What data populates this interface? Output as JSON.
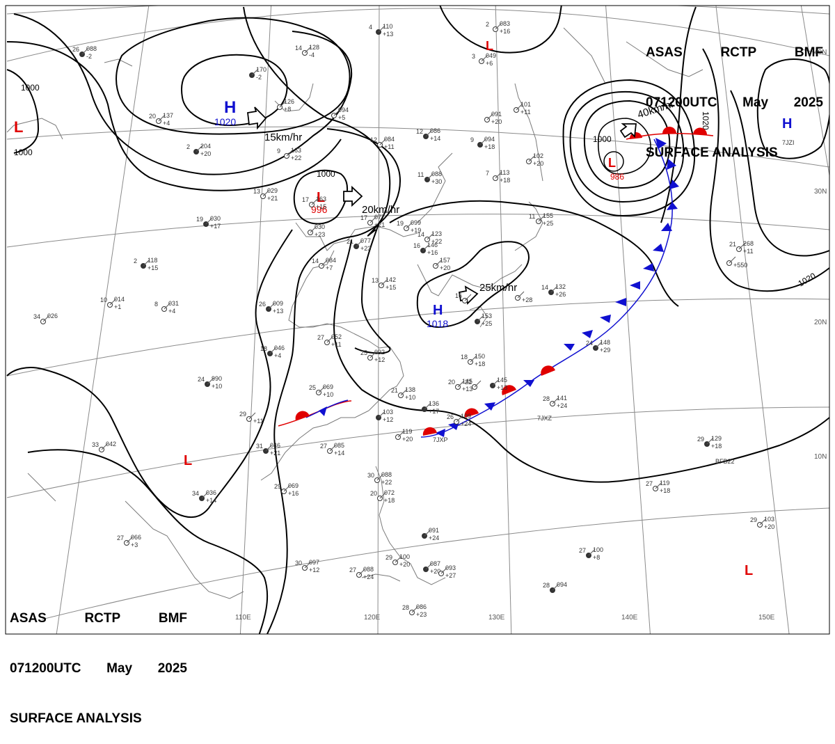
{
  "header": {
    "line1": [
      "ASAS",
      "RCTP",
      "BMF"
    ],
    "line2": [
      "071200UTC",
      "May",
      "2025"
    ],
    "line3": "SURFACE ANALYSIS"
  },
  "lat_labels": [
    "40N",
    "30N",
    "20N",
    "10N"
  ],
  "lon_labels": [
    "110E",
    "120E",
    "130E",
    "140E",
    "150E"
  ],
  "systems": [
    {
      "type": "H",
      "pressure": "1020"
    },
    {
      "type": "L",
      "pressure": "996"
    },
    {
      "type": "H",
      "pressure": "1018"
    },
    {
      "type": "L",
      "pressure": "986"
    },
    {
      "type": "L",
      "pressure": ""
    },
    {
      "type": "H",
      "pressure": ""
    },
    {
      "type": "L",
      "pressure": ""
    },
    {
      "type": "L",
      "pressure": ""
    },
    {
      "type": "L",
      "pressure": ""
    }
  ],
  "movements": [
    "15km/hr",
    "20km/hr",
    "25km/hr",
    "40km/hr"
  ],
  "isobar_labels": [
    "1000",
    "1000",
    "1000",
    "1000",
    "1020",
    "1020"
  ],
  "colors": {
    "low": "#e00000",
    "high": "#1010d0",
    "warm_front": "#e00000",
    "cold_front": "#1010d0",
    "isobar": "#000000",
    "grid": "#909090"
  },
  "stations": [
    {
      "t": "26",
      "p": "088",
      "d": "-2"
    },
    {
      "t": "20",
      "p": "137",
      "d": "+4"
    },
    {
      "t": "14",
      "p": "128",
      "d": "-4"
    },
    {
      "t": "",
      "p": "170",
      "d": "-2"
    },
    {
      "t": "",
      "p": "126",
      "d": "+8"
    },
    {
      "t": "",
      "p": "094",
      "d": "+5"
    },
    {
      "t": "4",
      "p": "110",
      "d": "+13"
    },
    {
      "t": "2",
      "p": "083",
      "d": "+16"
    },
    {
      "t": "3",
      "p": "049",
      "d": "+6"
    },
    {
      "t": "2",
      "p": "204",
      "d": "+20"
    },
    {
      "t": "9",
      "p": "163",
      "d": "+22"
    },
    {
      "t": "12",
      "p": "084",
      "d": "+11"
    },
    {
      "t": "12",
      "p": "086",
      "d": "+14"
    },
    {
      "t": "",
      "p": "091",
      "d": "+20"
    },
    {
      "t": "",
      "p": "101",
      "d": "+11"
    },
    {
      "t": "9",
      "p": "094",
      "d": "+18"
    },
    {
      "t": "",
      "p": "102",
      "d": "+20"
    },
    {
      "t": "7",
      "p": "113",
      "d": "+18"
    },
    {
      "t": "11",
      "p": "088",
      "d": "+30"
    },
    {
      "t": "13",
      "p": "029",
      "d": "+21"
    },
    {
      "t": "17",
      "p": "163",
      "d": "+15"
    },
    {
      "t": "19",
      "p": "030",
      "d": "+17"
    },
    {
      "t": "",
      "p": "030",
      "d": "+23"
    },
    {
      "t": "17",
      "p": "077",
      "d": "+21"
    },
    {
      "t": "21",
      "p": "077",
      "d": "+23"
    },
    {
      "t": "19",
      "p": "099",
      "d": "+19"
    },
    {
      "t": "14",
      "p": "123",
      "d": "+22"
    },
    {
      "t": "16",
      "p": "146",
      "d": "+16"
    },
    {
      "t": "11",
      "p": "155",
      "d": "+25"
    },
    {
      "t": "",
      "p": "157",
      "d": "+20"
    },
    {
      "t": "2",
      "p": "118",
      "d": "+15"
    },
    {
      "t": "14",
      "p": "084",
      "d": "+7"
    },
    {
      "t": "13",
      "p": "142",
      "d": "+15"
    },
    {
      "t": "14",
      "p": "132",
      "d": "+26"
    },
    {
      "t": "",
      "p": "",
      "d": "+28"
    },
    {
      "t": "16",
      "p": "",
      "d": ""
    },
    {
      "t": "",
      "p": "153",
      "d": "+25"
    },
    {
      "t": "10",
      "p": "014",
      "d": "+1"
    },
    {
      "t": "8",
      "p": "031",
      "d": "+4"
    },
    {
      "t": "26",
      "p": "009",
      "d": "+13"
    },
    {
      "t": "34",
      "p": "026",
      "d": ""
    },
    {
      "t": "27",
      "p": "052",
      "d": "+11"
    },
    {
      "t": "18",
      "p": "046",
      "d": "+4"
    },
    {
      "t": "25",
      "p": "092",
      "d": "+12"
    },
    {
      "t": "18",
      "p": "150",
      "d": "+18"
    },
    {
      "t": "24",
      "p": "148",
      "d": "+29"
    },
    {
      "t": "21",
      "p": "268",
      "d": "+11"
    },
    {
      "t": "",
      "p": "",
      "d": "+550"
    },
    {
      "t": "24",
      "p": "990",
      "d": "+10"
    },
    {
      "t": "20",
      "p": "145",
      "d": "+13"
    },
    {
      "t": "22",
      "p": "",
      "d": ""
    },
    {
      "t": "",
      "p": "145",
      "d": "+13"
    },
    {
      "t": "25",
      "p": "069",
      "d": "+10"
    },
    {
      "t": "21",
      "p": "138",
      "d": "+10"
    },
    {
      "t": "",
      "p": "136",
      "d": "+17"
    },
    {
      "t": "28",
      "p": "141",
      "d": "+24"
    },
    {
      "t": "29",
      "p": "",
      "d": "+11"
    },
    {
      "t": "",
      "p": "103",
      "d": "+12"
    },
    {
      "t": "26",
      "p": "109",
      "d": "+24"
    },
    {
      "t": "",
      "p": "119",
      "d": "+20"
    },
    {
      "t": "31",
      "p": "046",
      "d": "+21"
    },
    {
      "t": "27",
      "p": "085",
      "d": "+14"
    },
    {
      "t": "33",
      "p": "042",
      "d": ""
    },
    {
      "t": "29",
      "p": "129",
      "d": "+18"
    },
    {
      "t": "30",
      "p": "088",
      "d": "+22"
    },
    {
      "t": "29",
      "p": "069",
      "d": "+16"
    },
    {
      "t": "34",
      "p": "036",
      "d": "+14"
    },
    {
      "t": "20",
      "p": "072",
      "d": "+18"
    },
    {
      "t": "27",
      "p": "119",
      "d": "+18"
    },
    {
      "t": "",
      "p": "091",
      "d": "+24"
    },
    {
      "t": "29",
      "p": "103",
      "d": "+20"
    },
    {
      "t": "27",
      "p": "066",
      "d": "+3"
    },
    {
      "t": "27",
      "p": "100",
      "d": "+8"
    },
    {
      "t": "30",
      "p": "097",
      "d": "+12"
    },
    {
      "t": "29",
      "p": "100",
      "d": "+20"
    },
    {
      "t": "",
      "p": "087",
      "d": "+20"
    },
    {
      "t": "",
      "p": "093",
      "d": "+27"
    },
    {
      "t": "27",
      "p": "088",
      "d": "+24"
    },
    {
      "t": "28",
      "p": "094",
      "d": ""
    },
    {
      "t": "28",
      "p": "086",
      "d": "+23"
    }
  ],
  "ship_ids": [
    "7JZI",
    "7JXZ",
    "7JXP",
    "BFB22"
  ]
}
